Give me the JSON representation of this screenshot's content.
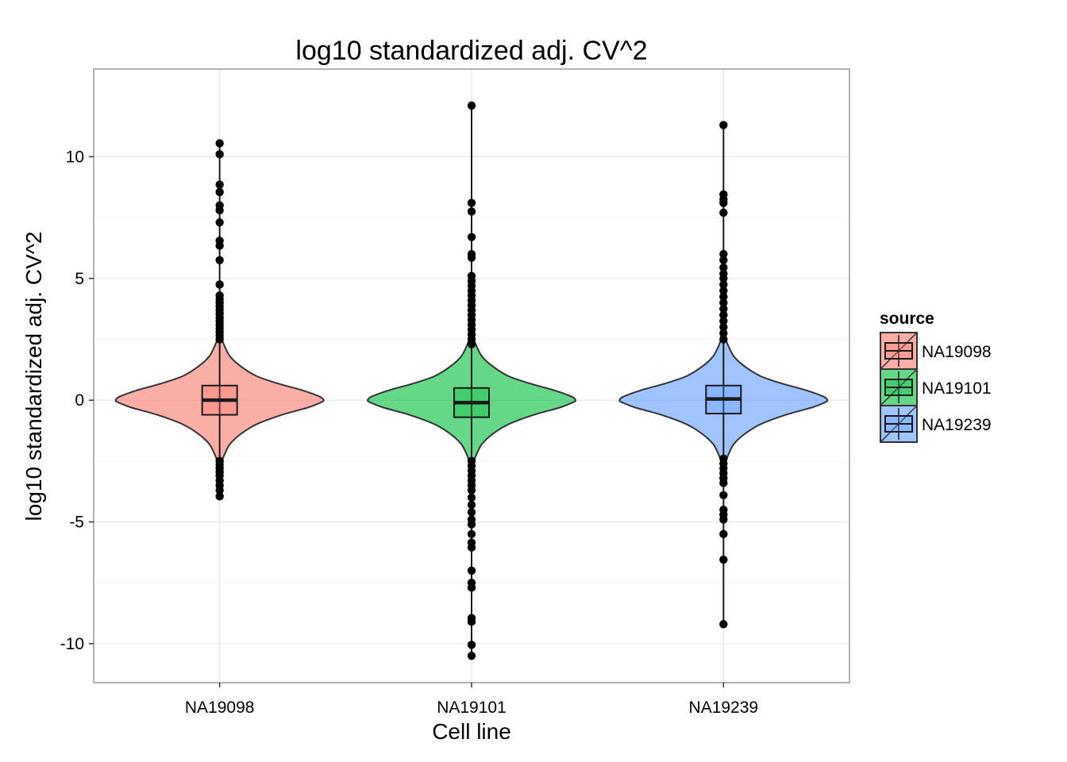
{
  "chart_data": {
    "type": "violin",
    "title": "log10 standardized adj. CV^2",
    "xlabel": "Cell line",
    "ylabel": "log10 standardized adj. CV^2",
    "ylim": [
      -11.6,
      13.6
    ],
    "y_ticks": [
      10,
      5,
      0,
      -5,
      -10
    ],
    "y_tick_labels": [
      "10",
      "5",
      "0",
      "-5",
      "-10"
    ],
    "categories": [
      "NA19098",
      "NA19101",
      "NA19239"
    ],
    "grid": true,
    "legend": {
      "title": "source",
      "placement": "right",
      "entries": [
        "NA19098",
        "NA19101",
        "NA19239"
      ]
    },
    "colors": {
      "NA19098": "#F8766D",
      "NA19101": "#00BA38",
      "NA19239": "#619CFF",
      "panel_background": "#FFFFFF",
      "grid_major": "#E5E5E5",
      "grid_minor": "#F2F2F2",
      "panel_border": "#7F7F7F"
    },
    "series": [
      {
        "name": "NA19098",
        "box": {
          "q1": -0.6,
          "median": 0.0,
          "q3": 0.6,
          "whisker_low": -2.3,
          "whisker_high": 2.4
        },
        "violin_profile": [
          [
            -2.6,
            0.01
          ],
          [
            -2.2,
            0.05
          ],
          [
            -1.8,
            0.1
          ],
          [
            -1.4,
            0.2
          ],
          [
            -1.0,
            0.35
          ],
          [
            -0.6,
            0.6
          ],
          [
            -0.3,
            0.85
          ],
          [
            -0.1,
            0.97
          ],
          [
            0.0,
            1.0
          ],
          [
            0.15,
            0.96
          ],
          [
            0.4,
            0.8
          ],
          [
            0.7,
            0.55
          ],
          [
            1.0,
            0.35
          ],
          [
            1.4,
            0.2
          ],
          [
            1.8,
            0.1
          ],
          [
            2.2,
            0.05
          ],
          [
            2.6,
            0.01
          ]
        ],
        "outliers": [
          10.55,
          10.1,
          8.85,
          8.55,
          8.0,
          7.8,
          7.3,
          6.55,
          6.35,
          5.75,
          4.75,
          4.3,
          4.15,
          4.0,
          3.85,
          3.7,
          3.55,
          3.4,
          3.25,
          3.1,
          2.95,
          2.8,
          2.65,
          2.5,
          -2.5,
          -2.65,
          -2.8,
          -2.95,
          -3.1,
          -3.3,
          -3.5,
          -3.7,
          -3.95
        ]
      },
      {
        "name": "NA19101",
        "box": {
          "q1": -0.7,
          "median": -0.1,
          "q3": 0.5,
          "whisker_low": -2.4,
          "whisker_high": 2.2
        },
        "violin_profile": [
          [
            -2.6,
            0.01
          ],
          [
            -2.2,
            0.05
          ],
          [
            -1.8,
            0.1
          ],
          [
            -1.4,
            0.2
          ],
          [
            -1.0,
            0.35
          ],
          [
            -0.6,
            0.6
          ],
          [
            -0.3,
            0.85
          ],
          [
            -0.1,
            0.97
          ],
          [
            0.0,
            1.0
          ],
          [
            0.15,
            0.96
          ],
          [
            0.4,
            0.8
          ],
          [
            0.7,
            0.55
          ],
          [
            1.0,
            0.35
          ],
          [
            1.4,
            0.2
          ],
          [
            1.8,
            0.1
          ],
          [
            2.2,
            0.05
          ],
          [
            2.6,
            0.01
          ]
        ],
        "outliers": [
          12.1,
          8.1,
          7.75,
          6.7,
          6.0,
          5.85,
          5.1,
          4.9,
          4.7,
          4.5,
          4.3,
          4.1,
          3.9,
          3.7,
          3.5,
          3.3,
          3.1,
          2.9,
          2.7,
          2.5,
          2.3,
          -2.5,
          -2.7,
          -2.9,
          -3.1,
          -3.3,
          -3.5,
          -3.7,
          -4.0,
          -4.3,
          -4.6,
          -4.9,
          -5.1,
          -5.5,
          -5.85,
          -6.05,
          -7.0,
          -7.5,
          -7.7,
          -8.95,
          -9.1,
          -10.05,
          -10.5
        ]
      },
      {
        "name": "NA19239",
        "box": {
          "q1": -0.55,
          "median": 0.05,
          "q3": 0.6,
          "whisker_low": -2.3,
          "whisker_high": 2.4
        },
        "violin_profile": [
          [
            -2.6,
            0.01
          ],
          [
            -2.2,
            0.05
          ],
          [
            -1.8,
            0.1
          ],
          [
            -1.4,
            0.2
          ],
          [
            -1.0,
            0.35
          ],
          [
            -0.6,
            0.6
          ],
          [
            -0.3,
            0.85
          ],
          [
            -0.1,
            0.97
          ],
          [
            0.0,
            1.0
          ],
          [
            0.15,
            0.96
          ],
          [
            0.4,
            0.8
          ],
          [
            0.7,
            0.55
          ],
          [
            1.0,
            0.35
          ],
          [
            1.4,
            0.2
          ],
          [
            1.8,
            0.1
          ],
          [
            2.2,
            0.05
          ],
          [
            2.6,
            0.01
          ]
        ],
        "outliers": [
          11.3,
          8.45,
          8.25,
          8.1,
          7.7,
          6.0,
          5.75,
          5.45,
          5.2,
          5.0,
          4.75,
          4.5,
          4.25,
          4.0,
          3.75,
          3.5,
          3.25,
          3.0,
          2.75,
          2.5,
          -2.4,
          -2.6,
          -2.8,
          -3.0,
          -3.2,
          -3.4,
          -3.9,
          -4.5,
          -4.7,
          -4.9,
          -5.5,
          -6.55,
          -9.2
        ]
      }
    ]
  }
}
